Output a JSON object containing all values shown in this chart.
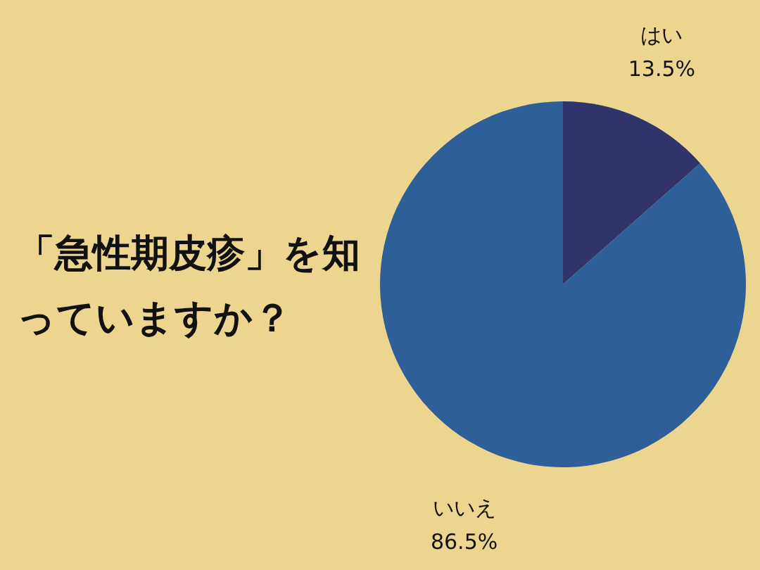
{
  "chart_data": {
    "type": "pie",
    "title": "「急性期皮疹」を知っていますか？",
    "categories": [
      "はい",
      "いいえ"
    ],
    "values": [
      13.5,
      86.5
    ],
    "value_labels": [
      "13.5%",
      "86.5%"
    ],
    "colors": [
      "#31346b",
      "#2e5f98"
    ]
  }
}
